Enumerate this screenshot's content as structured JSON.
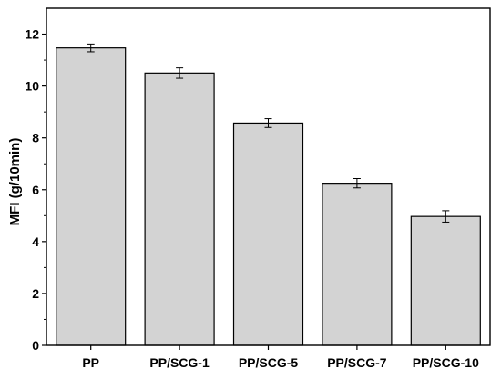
{
  "chart_data": {
    "type": "bar",
    "title": "",
    "xlabel": "",
    "ylabel": "MFI (g/10min)",
    "categories": [
      "PP",
      "PP/SCG-1",
      "PP/SCG-5",
      "PP/SCG-7",
      "PP/SCG-10"
    ],
    "values": [
      11.47,
      10.5,
      8.57,
      6.25,
      4.97
    ],
    "errors": [
      0.15,
      0.2,
      0.17,
      0.18,
      0.22
    ],
    "ylim": [
      0,
      13
    ],
    "yticks": [
      "0",
      "2",
      "4",
      "6",
      "8",
      "10",
      "12"
    ],
    "grid": false,
    "legend": "none",
    "bar_color": "#d3d3d3",
    "edge_color": "#000000"
  }
}
